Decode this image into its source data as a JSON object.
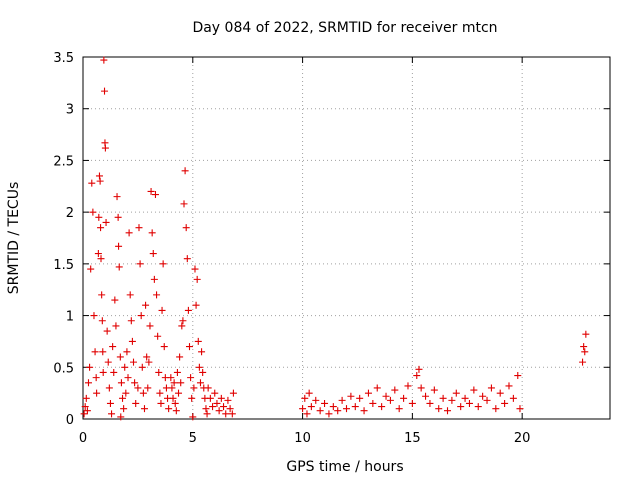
{
  "chart_data": {
    "type": "scatter",
    "title": "Day 084 of 2022, SRMTID for receiver mtcn",
    "xlabel": "GPS time / hours",
    "ylabel": "SRMTID / TECUs",
    "xlim": [
      0,
      24
    ],
    "ylim": [
      0,
      3.5
    ],
    "x_ticks": [
      0,
      5,
      10,
      15,
      20
    ],
    "x_tick_labels": [
      "0",
      "5",
      "10",
      "15",
      "20"
    ],
    "y_ticks": [
      0,
      0.5,
      1,
      1.5,
      2,
      2.5,
      3,
      3.5
    ],
    "y_tick_labels": [
      "0",
      "0.5",
      "1",
      "1.5",
      "2",
      "2.5",
      "3",
      "3.5"
    ],
    "grid": true,
    "marker": "plus",
    "marker_color": "#e00000",
    "series": [
      {
        "name": "SRMTID",
        "points": [
          [
            0.05,
            0.05
          ],
          [
            0.1,
            0.12
          ],
          [
            0.15,
            0.2
          ],
          [
            0.2,
            0.08
          ],
          [
            0.25,
            0.35
          ],
          [
            0.3,
            0.5
          ],
          [
            0.35,
            1.45
          ],
          [
            0.4,
            2.28
          ],
          [
            0.45,
            2.0
          ],
          [
            0.5,
            1.0
          ],
          [
            0.55,
            0.65
          ],
          [
            0.6,
            0.4
          ],
          [
            0.62,
            0.25
          ],
          [
            0.7,
            1.6
          ],
          [
            0.72,
            1.95
          ],
          [
            0.75,
            2.35
          ],
          [
            0.78,
            2.3
          ],
          [
            0.8,
            1.85
          ],
          [
            0.82,
            1.55
          ],
          [
            0.85,
            1.2
          ],
          [
            0.88,
            0.95
          ],
          [
            0.9,
            0.65
          ],
          [
            0.92,
            0.45
          ],
          [
            0.95,
            3.47
          ],
          [
            0.98,
            3.17
          ],
          [
            1.0,
            2.67
          ],
          [
            1.02,
            2.62
          ],
          [
            1.05,
            1.9
          ],
          [
            1.1,
            0.85
          ],
          [
            1.15,
            0.55
          ],
          [
            1.2,
            0.3
          ],
          [
            1.25,
            0.15
          ],
          [
            1.3,
            0.05
          ],
          [
            1.35,
            0.7
          ],
          [
            1.4,
            0.45
          ],
          [
            1.45,
            1.15
          ],
          [
            1.5,
            0.9
          ],
          [
            1.55,
            2.15
          ],
          [
            1.6,
            1.95
          ],
          [
            1.62,
            1.67
          ],
          [
            1.65,
            1.47
          ],
          [
            1.7,
            0.6
          ],
          [
            1.72,
            0.02
          ],
          [
            1.75,
            0.35
          ],
          [
            1.8,
            0.2
          ],
          [
            1.85,
            0.1
          ],
          [
            1.9,
            0.5
          ],
          [
            1.95,
            0.25
          ],
          [
            2.0,
            0.65
          ],
          [
            2.05,
            0.4
          ],
          [
            2.1,
            1.8
          ],
          [
            2.15,
            1.2
          ],
          [
            2.2,
            0.95
          ],
          [
            2.25,
            0.75
          ],
          [
            2.3,
            0.55
          ],
          [
            2.35,
            0.35
          ],
          [
            2.4,
            0.15
          ],
          [
            2.5,
            0.3
          ],
          [
            2.55,
            1.85
          ],
          [
            2.6,
            1.5
          ],
          [
            2.65,
            1.0
          ],
          [
            2.7,
            0.5
          ],
          [
            2.75,
            0.25
          ],
          [
            2.8,
            0.1
          ],
          [
            2.85,
            1.1
          ],
          [
            2.9,
            0.6
          ],
          [
            2.95,
            0.3
          ],
          [
            3.0,
            0.55
          ],
          [
            3.05,
            0.9
          ],
          [
            3.1,
            2.2
          ],
          [
            3.15,
            1.8
          ],
          [
            3.2,
            1.6
          ],
          [
            3.25,
            1.35
          ],
          [
            3.3,
            2.17
          ],
          [
            3.35,
            1.2
          ],
          [
            3.4,
            0.8
          ],
          [
            3.45,
            0.45
          ],
          [
            3.5,
            0.25
          ],
          [
            3.55,
            0.15
          ],
          [
            3.6,
            1.05
          ],
          [
            3.65,
            1.5
          ],
          [
            3.7,
            0.7
          ],
          [
            3.75,
            0.4
          ],
          [
            3.8,
            0.3
          ],
          [
            3.85,
            0.2
          ],
          [
            3.9,
            0.1
          ],
          [
            4.0,
            0.4
          ],
          [
            4.05,
            0.3
          ],
          [
            4.1,
            0.2
          ],
          [
            4.15,
            0.35
          ],
          [
            4.2,
            0.15
          ],
          [
            4.25,
            0.08
          ],
          [
            4.3,
            0.45
          ],
          [
            4.35,
            0.25
          ],
          [
            4.4,
            0.6
          ],
          [
            4.45,
            0.35
          ],
          [
            4.5,
            0.9
          ],
          [
            4.55,
            0.95
          ],
          [
            4.6,
            2.08
          ],
          [
            4.65,
            2.4
          ],
          [
            4.7,
            1.85
          ],
          [
            4.75,
            1.55
          ],
          [
            4.8,
            1.05
          ],
          [
            4.85,
            0.7
          ],
          [
            4.9,
            0.4
          ],
          [
            4.95,
            0.2
          ],
          [
            5.0,
            0.02
          ],
          [
            5.05,
            0.3
          ],
          [
            5.1,
            1.45
          ],
          [
            5.15,
            1.1
          ],
          [
            5.2,
            1.35
          ],
          [
            5.25,
            0.75
          ],
          [
            5.3,
            0.5
          ],
          [
            5.35,
            0.35
          ],
          [
            5.4,
            0.65
          ],
          [
            5.45,
            0.45
          ],
          [
            5.5,
            0.3
          ],
          [
            5.55,
            0.2
          ],
          [
            5.6,
            0.1
          ],
          [
            5.65,
            0.05
          ],
          [
            5.7,
            0.3
          ],
          [
            5.8,
            0.2
          ],
          [
            5.9,
            0.12
          ],
          [
            6.0,
            0.25
          ],
          [
            6.1,
            0.15
          ],
          [
            6.2,
            0.08
          ],
          [
            6.3,
            0.2
          ],
          [
            6.4,
            0.12
          ],
          [
            6.5,
            0.05
          ],
          [
            6.6,
            0.18
          ],
          [
            6.7,
            0.1
          ],
          [
            6.8,
            0.05
          ],
          [
            6.85,
            0.25
          ],
          [
            10.0,
            0.1
          ],
          [
            10.1,
            0.2
          ],
          [
            10.2,
            0.05
          ],
          [
            10.3,
            0.25
          ],
          [
            10.4,
            0.12
          ],
          [
            10.6,
            0.18
          ],
          [
            10.8,
            0.08
          ],
          [
            11.0,
            0.15
          ],
          [
            11.2,
            0.05
          ],
          [
            11.4,
            0.12
          ],
          [
            11.6,
            0.08
          ],
          [
            11.8,
            0.18
          ],
          [
            12.0,
            0.1
          ],
          [
            12.2,
            0.22
          ],
          [
            12.4,
            0.12
          ],
          [
            12.6,
            0.2
          ],
          [
            12.8,
            0.08
          ],
          [
            13.0,
            0.25
          ],
          [
            13.2,
            0.15
          ],
          [
            13.4,
            0.3
          ],
          [
            13.6,
            0.12
          ],
          [
            13.8,
            0.22
          ],
          [
            14.0,
            0.18
          ],
          [
            14.2,
            0.28
          ],
          [
            14.4,
            0.1
          ],
          [
            14.6,
            0.2
          ],
          [
            14.8,
            0.32
          ],
          [
            15.0,
            0.15
          ],
          [
            15.2,
            0.42
          ],
          [
            15.3,
            0.48
          ],
          [
            15.4,
            0.3
          ],
          [
            15.6,
            0.22
          ],
          [
            15.8,
            0.15
          ],
          [
            16.0,
            0.28
          ],
          [
            16.2,
            0.1
          ],
          [
            16.4,
            0.2
          ],
          [
            16.6,
            0.08
          ],
          [
            16.8,
            0.18
          ],
          [
            17.0,
            0.25
          ],
          [
            17.2,
            0.12
          ],
          [
            17.4,
            0.2
          ],
          [
            17.6,
            0.15
          ],
          [
            17.8,
            0.28
          ],
          [
            18.0,
            0.12
          ],
          [
            18.2,
            0.22
          ],
          [
            18.4,
            0.18
          ],
          [
            18.6,
            0.3
          ],
          [
            18.8,
            0.1
          ],
          [
            19.0,
            0.25
          ],
          [
            19.2,
            0.15
          ],
          [
            19.4,
            0.32
          ],
          [
            19.6,
            0.2
          ],
          [
            19.8,
            0.42
          ],
          [
            19.9,
            0.1
          ],
          [
            22.75,
            0.55
          ],
          [
            22.8,
            0.7
          ],
          [
            22.85,
            0.65
          ],
          [
            22.9,
            0.82
          ]
        ]
      }
    ]
  }
}
